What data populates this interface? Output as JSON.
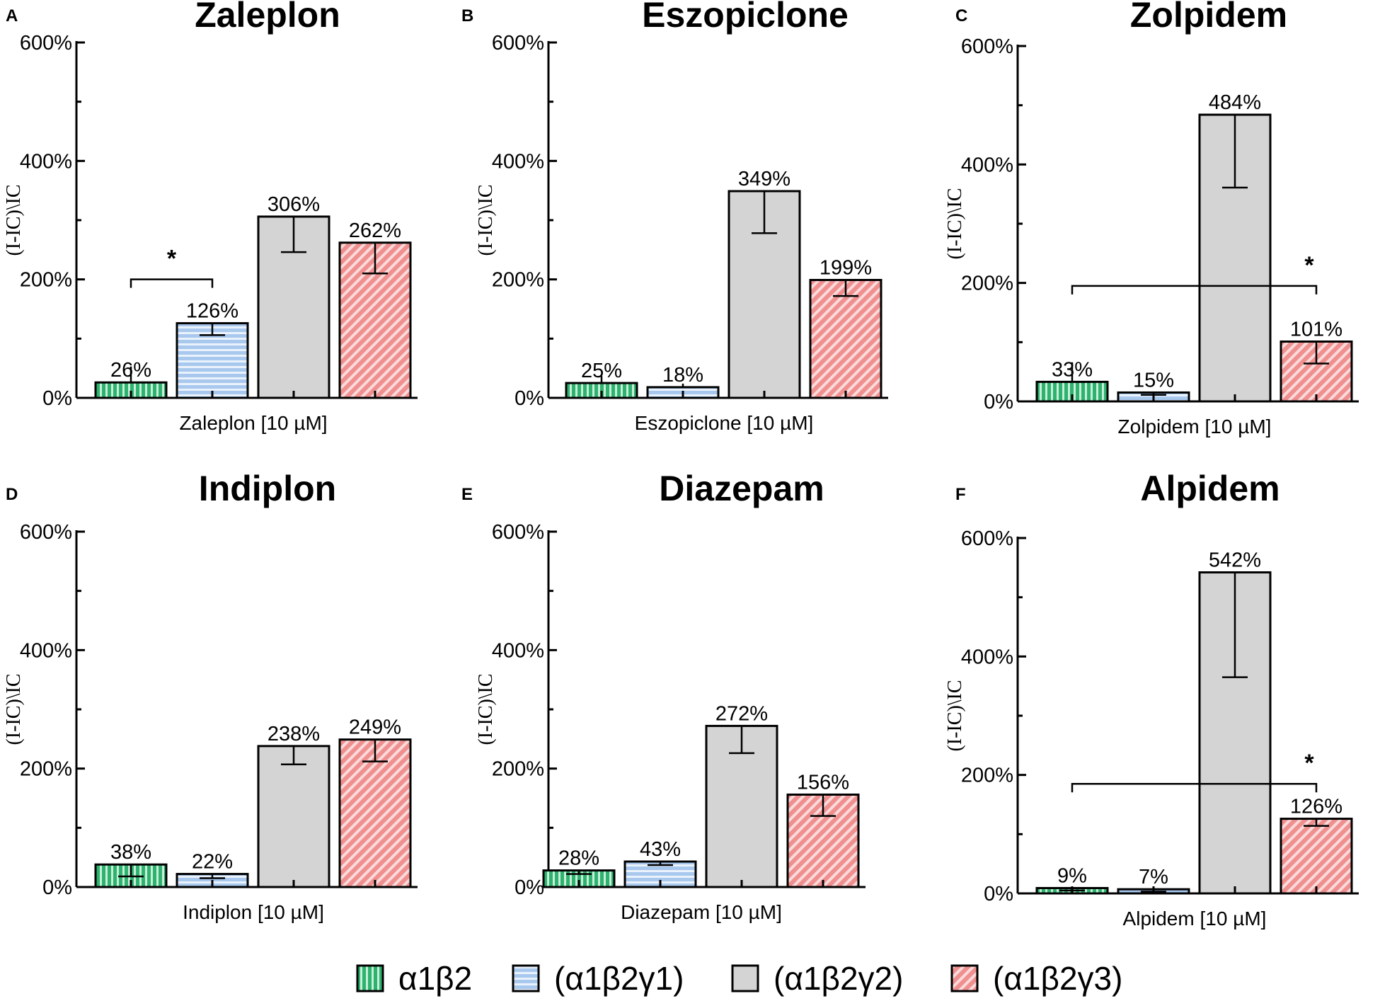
{
  "chart_data": [
    {
      "type": "bar",
      "panel": "A",
      "title": "Zaleplon",
      "xlabel": "Zaleplon [10 µM]",
      "ylabel": "(I-IC)\\IC",
      "ylim": [
        0,
        600
      ],
      "yticks": [
        "0%",
        "200%",
        "400%",
        "600%"
      ],
      "categories": [
        "α1β2",
        "(α1β2γ1)",
        "(α1β2γ2)",
        "(α1β2γ3)"
      ],
      "values": [
        26,
        126,
        306,
        262
      ],
      "err_low": [
        26,
        106,
        246,
        210
      ],
      "err_high": [
        53,
        126,
        306,
        262
      ],
      "value_labels": [
        "26%",
        "126%",
        "306%",
        "262%"
      ],
      "significance": [
        {
          "from": 0,
          "to": 1,
          "label": "*",
          "level": 200
        }
      ]
    },
    {
      "type": "bar",
      "panel": "B",
      "title": "Eszopiclone",
      "xlabel": "Eszopiclone [10 µM]",
      "ylabel": "(I-IC)\\IC",
      "ylim": [
        0,
        600
      ],
      "yticks": [
        "0%",
        "200%",
        "400%",
        "600%"
      ],
      "categories": [
        "α1β2",
        "(α1β2γ1)",
        "(α1β2γ2)",
        "(α1β2γ3)"
      ],
      "values": [
        25,
        18,
        349,
        199
      ],
      "err_low": [
        25,
        18,
        278,
        172
      ],
      "err_high": [
        37,
        24,
        349,
        199
      ],
      "value_labels": [
        "25%",
        "18%",
        "349%",
        "199%"
      ],
      "significance": []
    },
    {
      "type": "bar",
      "panel": "C",
      "title": "Zolpidem",
      "xlabel": "Zolpidem [10 µM]",
      "ylabel": "(I-IC)\\IC",
      "ylim": [
        0,
        600
      ],
      "yticks": [
        "0%",
        "200%",
        "400%",
        "600%"
      ],
      "categories": [
        "α1β2",
        "(α1β2γ1)",
        "(α1β2γ2)",
        "(α1β2γ3)"
      ],
      "values": [
        33,
        15,
        484,
        101
      ],
      "err_low": [
        33,
        11,
        361,
        64
      ],
      "err_high": [
        66,
        15,
        484,
        101
      ],
      "value_labels": [
        "33%",
        "15%",
        "484%",
        "101%"
      ],
      "significance": [
        {
          "from": 0,
          "to": 3,
          "label": "*",
          "level": 195
        }
      ]
    },
    {
      "type": "bar",
      "panel": "D",
      "title": "Indiplon",
      "xlabel": "Indiplon [10 µM]",
      "ylabel": "(I-IC)\\IC",
      "ylim": [
        0,
        600
      ],
      "yticks": [
        "0%",
        "200%",
        "400%",
        "600%"
      ],
      "categories": [
        "α1β2",
        "(α1β2γ1)",
        "(α1β2γ2)",
        "(α1β2γ3)"
      ],
      "values": [
        38,
        22,
        238,
        249
      ],
      "err_low": [
        18,
        15,
        207,
        212
      ],
      "err_high": [
        38,
        22,
        238,
        249
      ],
      "value_labels": [
        "38%",
        "22%",
        "238%",
        "249%"
      ],
      "significance": []
    },
    {
      "type": "bar",
      "panel": "E",
      "title": "Diazepam",
      "xlabel": "Diazepam [10 µM]",
      "ylabel": "(I-IC)\\IC",
      "ylim": [
        0,
        600
      ],
      "yticks": [
        "0%",
        "200%",
        "400%",
        "600%"
      ],
      "categories": [
        "α1β2",
        "(α1β2γ1)",
        "(α1β2γ2)",
        "(α1β2γ3)"
      ],
      "values": [
        28,
        43,
        272,
        156
      ],
      "err_low": [
        22,
        37,
        226,
        120
      ],
      "err_high": [
        28,
        43,
        272,
        156
      ],
      "value_labels": [
        "28%",
        "43%",
        "272%",
        "156%"
      ],
      "significance": []
    },
    {
      "type": "bar",
      "panel": "F",
      "title": "Alpidem",
      "xlabel": "Alpidem [10 µM]",
      "ylabel": "(I-IC)\\IC",
      "ylim": [
        0,
        600
      ],
      "yticks": [
        "0%",
        "200%",
        "400%",
        "600%"
      ],
      "categories": [
        "α1β2",
        "(α1β2γ1)",
        "(α1β2γ2)",
        "(α1β2γ3)"
      ],
      "values": [
        9,
        7,
        542,
        126
      ],
      "err_low": [
        5,
        3,
        365,
        114
      ],
      "err_high": [
        9,
        10,
        542,
        126
      ],
      "value_labels": [
        "9%",
        "7%",
        "542%",
        "126%"
      ],
      "significance": [
        {
          "from": 0,
          "to": 3,
          "label": "*",
          "level": 185
        }
      ]
    }
  ],
  "legend": {
    "items": [
      {
        "label": "α1β2",
        "color": "#2db36f",
        "pattern": "vertical"
      },
      {
        "label": "(α1β2γ1)",
        "color": "#a9c8ee",
        "pattern": "horizontal"
      },
      {
        "label": "(α1β2γ2)",
        "color": "#d4d4d4",
        "pattern": "solid"
      },
      {
        "label": "(α1β2γ3)",
        "color": "#ef8f8f",
        "pattern": "diagonal"
      }
    ]
  }
}
